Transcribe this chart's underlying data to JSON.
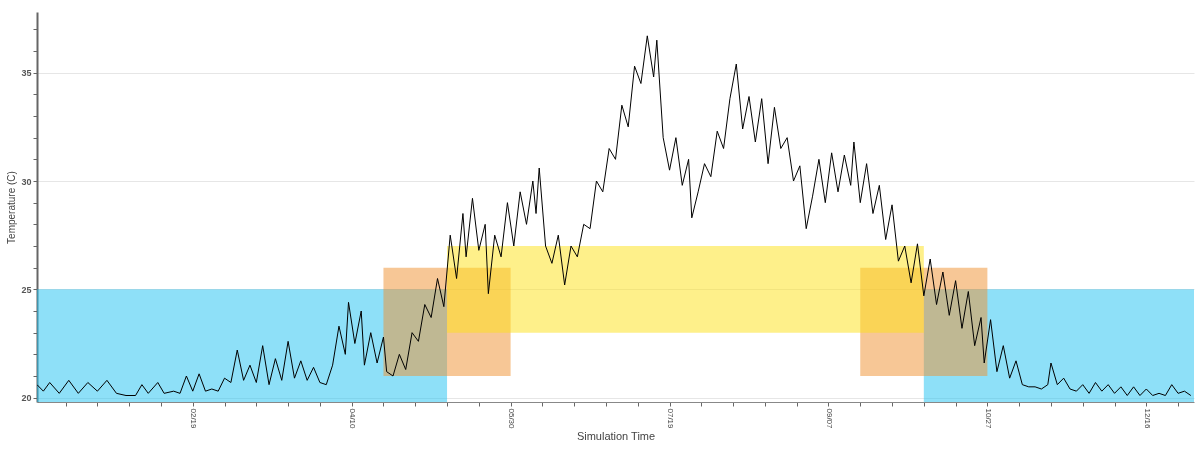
{
  "chart_data": {
    "type": "line",
    "xlabel": "Simulation Time",
    "ylabel": "Temperature (C)",
    "xlim": [
      "--01-01",
      "--12-31"
    ],
    "ylim": [
      19.8,
      37.8
    ],
    "xticks": [
      {
        "value": "--01-10",
        "label": null
      },
      {
        "value": "--01-20",
        "label": null
      },
      {
        "value": "--01-30",
        "label": null
      },
      {
        "value": "--02-09",
        "label": null
      },
      {
        "value": "--02-19",
        "label": "02/19"
      },
      {
        "value": "--03-01",
        "label": null
      },
      {
        "value": "--03-11",
        "label": null
      },
      {
        "value": "--03-21",
        "label": null
      },
      {
        "value": "--03-31",
        "label": null
      },
      {
        "value": "--04-10",
        "label": "04/10"
      },
      {
        "value": "--04-20",
        "label": null
      },
      {
        "value": "--04-30",
        "label": null
      },
      {
        "value": "--05-10",
        "label": null
      },
      {
        "value": "--05-20",
        "label": null
      },
      {
        "value": "--05-30",
        "label": "05/30"
      },
      {
        "value": "--06-09",
        "label": null
      },
      {
        "value": "--06-19",
        "label": null
      },
      {
        "value": "--06-29",
        "label": null
      },
      {
        "value": "--07-09",
        "label": null
      },
      {
        "value": "--07-19",
        "label": "07/19"
      },
      {
        "value": "--07-29",
        "label": null
      },
      {
        "value": "--08-08",
        "label": null
      },
      {
        "value": "--08-18",
        "label": null
      },
      {
        "value": "--08-28",
        "label": null
      },
      {
        "value": "--09-07",
        "label": "09/07"
      },
      {
        "value": "--09-17",
        "label": null
      },
      {
        "value": "--09-27",
        "label": null
      },
      {
        "value": "--10-07",
        "label": null
      },
      {
        "value": "--10-17",
        "label": null
      },
      {
        "value": "--10-27",
        "label": "10/27"
      },
      {
        "value": "--11-06",
        "label": null
      },
      {
        "value": "--11-16",
        "label": null
      },
      {
        "value": "--11-26",
        "label": null
      },
      {
        "value": "--12-06",
        "label": null
      },
      {
        "value": "--12-16",
        "label": "12/16"
      },
      {
        "value": "--12-26",
        "label": null
      }
    ],
    "yticks": [
      20,
      {
        "value": 21,
        "label": null
      },
      {
        "value": 22,
        "label": null
      },
      {
        "value": 23,
        "label": null
      },
      {
        "value": 24,
        "label": null
      },
      25,
      {
        "value": 26,
        "label": null
      },
      {
        "value": 27,
        "label": null
      },
      {
        "value": 28,
        "label": null
      },
      {
        "value": 29,
        "label": null
      },
      30,
      {
        "value": 31,
        "label": null
      },
      {
        "value": 32,
        "label": null
      },
      {
        "value": 33,
        "label": null
      },
      {
        "value": 34,
        "label": null
      },
      35,
      {
        "value": 36,
        "label": null
      },
      {
        "value": 37,
        "label": null
      }
    ],
    "grid": true,
    "series": [
      {
        "type": "line",
        "color": "#000000",
        "x": [
          "--01-01",
          "--01-03",
          "--01-05",
          "--01-08",
          "--01-11",
          "--01-14",
          "--01-17",
          "--01-20",
          "--01-23",
          "--01-26",
          "--01-29",
          "--02-01",
          "--02-03",
          "--02-05",
          "--02-08",
          "--02-10",
          "--02-13",
          "--02-15",
          "--02-17",
          "--02-19",
          "--02-21",
          "--02-23",
          "--02-25",
          "--02-27",
          "--03-01",
          "--03-03",
          "--03-05",
          "--03-07",
          "--03-09",
          "--03-11",
          "--03-13",
          "--03-15",
          "--03-17",
          "--03-19",
          "--03-21",
          "--03-23",
          "--03-25",
          "--03-27",
          "--03-29",
          "--03-31",
          "--04-02",
          "--04-04",
          "--04-06",
          "--04-08",
          "--04-09",
          "--04-11",
          "--04-13",
          "--04-14",
          "--04-16",
          "--04-18",
          "--04-20",
          "--04-21",
          "--04-23",
          "--04-25",
          "--04-27",
          "--04-29",
          "--05-01",
          "--05-03",
          "--05-05",
          "--05-07",
          "--05-09",
          "--05-11",
          "--05-13",
          "--05-15",
          "--05-16",
          "--05-18",
          "--05-20",
          "--05-22",
          "--05-23",
          "--05-25",
          "--05-27",
          "--05-29",
          "--05-31",
          "--06-02",
          "--06-04",
          "--06-06",
          "--06-07",
          "--06-08",
          "--06-10",
          "--06-12",
          "--06-14",
          "--06-16",
          "--06-18",
          "--06-20",
          "--06-22",
          "--06-24",
          "--06-26",
          "--06-28",
          "--06-30",
          "--07-02",
          "--07-04",
          "--07-06",
          "--07-08",
          "--07-10",
          "--07-12",
          "--07-14",
          "--07-15",
          "--07-17",
          "--07-19",
          "--07-21",
          "--07-23",
          "--07-25",
          "--07-26",
          "--07-28",
          "--07-30",
          "--08-01",
          "--08-03",
          "--08-05",
          "--08-07",
          "--08-09",
          "--08-11",
          "--08-13",
          "--08-15",
          "--08-17",
          "--08-19",
          "--08-21",
          "--08-23",
          "--08-25",
          "--08-27",
          "--08-29",
          "--08-31",
          "--09-02",
          "--09-04",
          "--09-06",
          "--09-08",
          "--09-10",
          "--09-12",
          "--09-14",
          "--09-15",
          "--09-17",
          "--09-19",
          "--09-21",
          "--09-23",
          "--09-25",
          "--09-27",
          "--09-29",
          "--10-01",
          "--10-03",
          "--10-05",
          "--10-07",
          "--10-09",
          "--10-11",
          "--10-13",
          "--10-15",
          "--10-17",
          "--10-19",
          "--10-21",
          "--10-23",
          "--10-25",
          "--10-26",
          "--10-28",
          "--10-30",
          "--11-01",
          "--11-03",
          "--11-05",
          "--11-07",
          "--11-09",
          "--11-11",
          "--11-13",
          "--11-15",
          "--11-16",
          "--11-18",
          "--11-20",
          "--11-22",
          "--11-24",
          "--11-26",
          "--11-28",
          "--11-30",
          "--12-02",
          "--12-04",
          "--12-06",
          "--12-08",
          "--12-10",
          "--12-12",
          "--12-14",
          "--12-16",
          "--12-18",
          "--12-20",
          "--12-22",
          "--12-24",
          "--12-26",
          "--12-28",
          "--12-30"
        ],
        "values": [
          20.6,
          20.3,
          20.7,
          20.2,
          20.8,
          20.2,
          20.7,
          20.3,
          20.8,
          20.2,
          20.1,
          20.1,
          20.6,
          20.2,
          20.7,
          20.2,
          20.3,
          20.2,
          21.0,
          20.3,
          21.1,
          20.3,
          20.4,
          20.3,
          20.9,
          20.7,
          22.2,
          20.8,
          21.5,
          20.7,
          22.4,
          20.6,
          21.8,
          20.8,
          22.6,
          20.9,
          21.7,
          20.8,
          21.4,
          20.7,
          20.6,
          21.5,
          23.3,
          22.0,
          24.4,
          22.5,
          24.0,
          21.5,
          23.0,
          21.6,
          22.8,
          21.2,
          21.0,
          22.0,
          21.3,
          23.0,
          22.6,
          24.3,
          23.7,
          25.5,
          24.2,
          27.5,
          25.5,
          28.5,
          26.5,
          29.2,
          26.8,
          28.0,
          24.8,
          27.5,
          26.5,
          29.0,
          27.0,
          29.5,
          28.0,
          30.0,
          28.5,
          30.6,
          27.0,
          26.2,
          27.5,
          25.2,
          27.0,
          26.5,
          28.0,
          27.8,
          30.0,
          29.5,
          31.5,
          31.0,
          33.5,
          32.5,
          35.3,
          34.5,
          36.7,
          34.8,
          36.5,
          32.0,
          30.5,
          32.0,
          29.8,
          31.0,
          28.3,
          29.5,
          30.8,
          30.2,
          32.3,
          31.5,
          33.8,
          35.4,
          32.4,
          33.9,
          31.8,
          33.8,
          30.8,
          33.4,
          31.5,
          32.0,
          30.0,
          30.7,
          27.8,
          29.3,
          31.0,
          29.0,
          31.3,
          29.5,
          31.2,
          29.8,
          31.8,
          29.0,
          30.8,
          28.5,
          29.8,
          27.3,
          28.9,
          26.3,
          27.0,
          25.3,
          27.1,
          24.7,
          26.4,
          24.3,
          25.8,
          23.8,
          25.4,
          23.2,
          24.9,
          22.4,
          23.7,
          21.6,
          23.6,
          21.2,
          22.4,
          20.9,
          21.7,
          20.6,
          20.5,
          20.5,
          20.4,
          20.6,
          21.6,
          20.6,
          20.9,
          20.4,
          20.3,
          20.6,
          20.2,
          20.7,
          20.3,
          20.6,
          20.2,
          20.5,
          20.1,
          20.5,
          20.1,
          20.4,
          20.1,
          20.2,
          20.1,
          20.6,
          20.2,
          20.3,
          20.1
        ]
      },
      {
        "type": "area",
        "color": "#1dc1f1",
        "x": [
          "--01-01",
          "--05-10"
        ],
        "values": [
          null,
          null
        ],
        "lower": [
          19.8,
          19.8
        ],
        "upper": [
          25,
          25
        ]
      },
      {
        "type": "area",
        "color": "#1dc1f1",
        "x": [
          "--10-07",
          "--12-31"
        ],
        "values": [
          null,
          null
        ],
        "lower": [
          19.8,
          19.8
        ],
        "upper": [
          25,
          25
        ]
      },
      {
        "type": "area",
        "color": "#f0902d",
        "x": [
          "--04-20",
          "--05-30"
        ],
        "values": [
          null,
          null
        ],
        "lower": [
          21,
          21
        ],
        "upper": [
          26,
          26
        ]
      },
      {
        "type": "area",
        "color": "#f0902d",
        "x": [
          "--09-17",
          "--10-27"
        ],
        "values": [
          null,
          null
        ],
        "lower": [
          21,
          21
        ],
        "upper": [
          26,
          26
        ]
      },
      {
        "type": "area",
        "color": "#fde115",
        "x": [
          "--05-10",
          "--10-07"
        ],
        "values": [
          null,
          null
        ],
        "lower": [
          23,
          23
        ],
        "upper": [
          27,
          27
        ]
      }
    ]
  }
}
